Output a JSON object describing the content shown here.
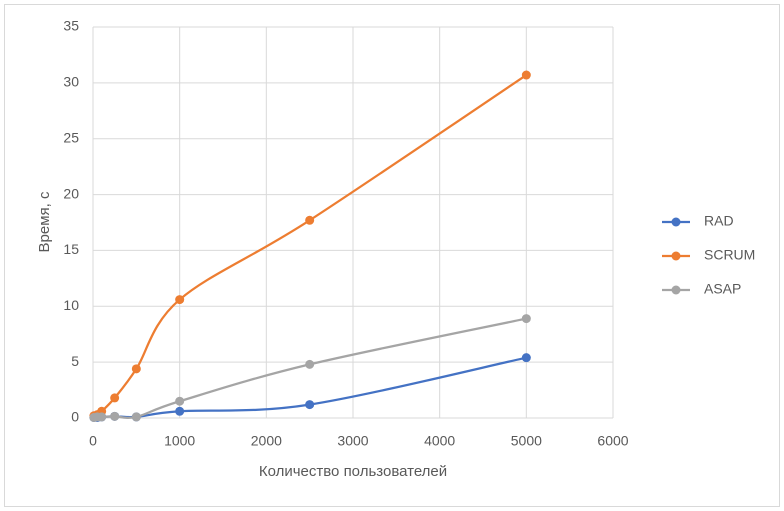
{
  "chart_data": {
    "type": "line",
    "x_label": "Количество пользователей",
    "y_label": "Время, с",
    "x": [
      10,
      50,
      100,
      250,
      500,
      1000,
      2500,
      5000
    ],
    "series": [
      {
        "name": "RAD",
        "color": "#4472c4",
        "values": [
          0.05,
          0.05,
          0.1,
          0.15,
          0.1,
          0.6,
          1.2,
          5.4
        ]
      },
      {
        "name": "SCRUM",
        "color": "#ed7d31",
        "values": [
          0.2,
          0.3,
          0.6,
          1.8,
          4.4,
          10.6,
          17.7,
          30.7
        ]
      },
      {
        "name": "ASAP",
        "color": "#a5a5a5",
        "values": [
          0.05,
          0.1,
          0.1,
          0.15,
          0.1,
          1.5,
          4.8,
          8.9
        ]
      }
    ],
    "xlim": [
      0,
      6000
    ],
    "xticks": [
      0,
      1000,
      2000,
      3000,
      4000,
      5000,
      6000
    ],
    "ylim": [
      0,
      35
    ],
    "yticks": [
      0,
      5,
      10,
      15,
      20,
      25,
      30,
      35
    ],
    "grid": true,
    "legend": "right",
    "smooth": true
  }
}
